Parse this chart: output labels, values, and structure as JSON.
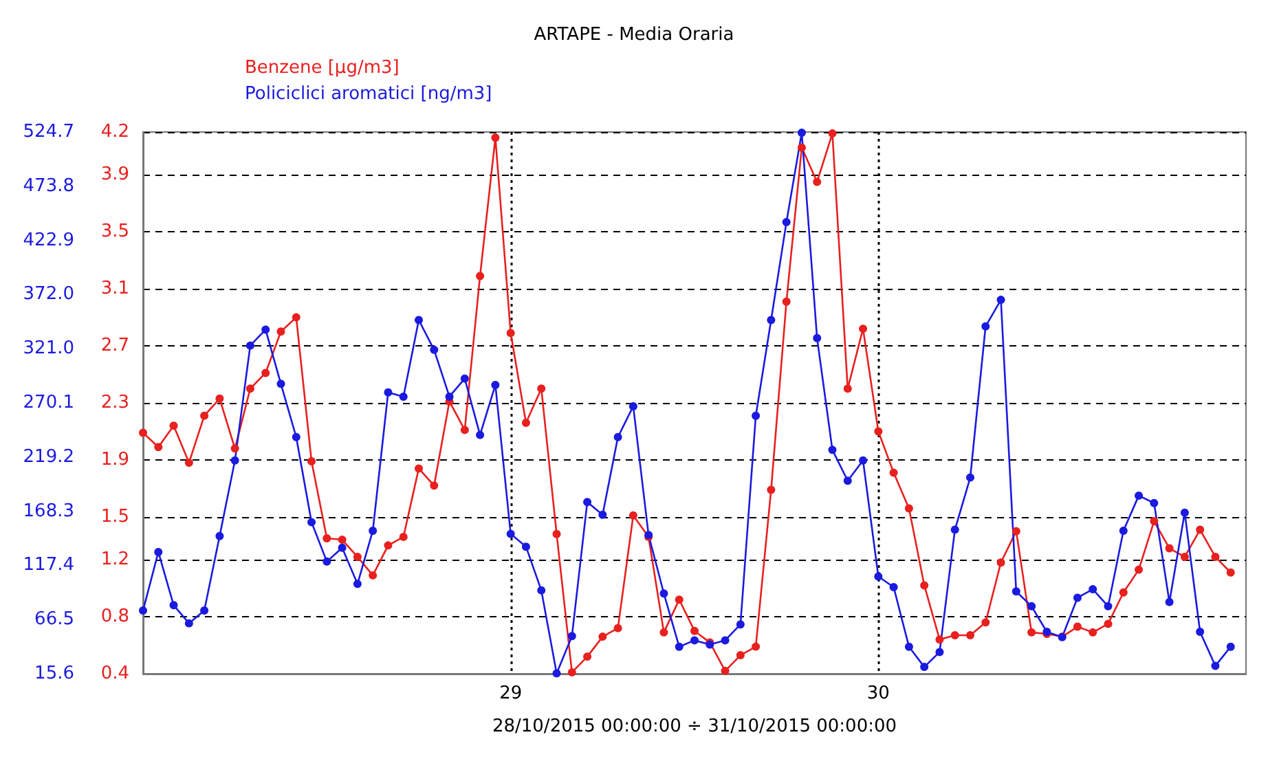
{
  "chart_data": {
    "type": "line",
    "title": "ARTAPE - Media Oraria",
    "xlabel": "28/10/2015 00:00:00 ÷ 31/10/2015 00:00:00",
    "x": [
      "2015-10-28T00:00",
      "2015-10-28T01:00",
      "2015-10-28T02:00",
      "2015-10-28T03:00",
      "2015-10-28T04:00",
      "2015-10-28T05:00",
      "2015-10-28T06:00",
      "2015-10-28T07:00",
      "2015-10-28T08:00",
      "2015-10-28T09:00",
      "2015-10-28T10:00",
      "2015-10-28T11:00",
      "2015-10-28T12:00",
      "2015-10-28T13:00",
      "2015-10-28T14:00",
      "2015-10-28T15:00",
      "2015-10-28T16:00",
      "2015-10-28T17:00",
      "2015-10-28T18:00",
      "2015-10-28T19:00",
      "2015-10-28T20:00",
      "2015-10-28T21:00",
      "2015-10-28T22:00",
      "2015-10-28T23:00",
      "2015-10-29T00:00",
      "2015-10-29T01:00",
      "2015-10-29T02:00",
      "2015-10-29T03:00",
      "2015-10-29T04:00",
      "2015-10-29T05:00",
      "2015-10-29T06:00",
      "2015-10-29T07:00",
      "2015-10-29T08:00",
      "2015-10-29T09:00",
      "2015-10-29T10:00",
      "2015-10-29T11:00",
      "2015-10-29T12:00",
      "2015-10-29T13:00",
      "2015-10-29T14:00",
      "2015-10-29T15:00",
      "2015-10-29T16:00",
      "2015-10-29T17:00",
      "2015-10-29T18:00",
      "2015-10-29T19:00",
      "2015-10-29T20:00",
      "2015-10-29T21:00",
      "2015-10-29T22:00",
      "2015-10-29T23:00",
      "2015-10-30T00:00",
      "2015-10-30T01:00",
      "2015-10-30T02:00",
      "2015-10-30T03:00",
      "2015-10-30T04:00",
      "2015-10-30T05:00",
      "2015-10-30T06:00",
      "2015-10-30T07:00",
      "2015-10-30T08:00",
      "2015-10-30T09:00",
      "2015-10-30T10:00",
      "2015-10-30T11:00",
      "2015-10-30T12:00",
      "2015-10-30T13:00",
      "2015-10-30T14:00",
      "2015-10-30T15:00",
      "2015-10-30T16:00",
      "2015-10-30T17:00",
      "2015-10-30T18:00",
      "2015-10-30T19:00",
      "2015-10-30T20:00",
      "2015-10-30T21:00",
      "2015-10-30T22:00",
      "2015-10-30T23:00"
    ],
    "series": [
      {
        "name": "Benzene [µg/m3]",
        "color": "#e8201e",
        "values": [
          2.09,
          1.99,
          2.14,
          1.88,
          2.21,
          2.33,
          1.98,
          2.4,
          2.51,
          2.8,
          2.9,
          1.89,
          1.35,
          1.34,
          1.22,
          1.09,
          1.3,
          1.36,
          1.84,
          1.72,
          2.31,
          2.11,
          3.19,
          4.16,
          2.79,
          2.16,
          2.4,
          1.38,
          0.41,
          0.52,
          0.66,
          0.72,
          1.51,
          1.36,
          0.69,
          0.92,
          0.7,
          0.62,
          0.42,
          0.53,
          0.59,
          1.69,
          3.01,
          4.09,
          3.85,
          4.19,
          2.4,
          2.82,
          2.1,
          1.81,
          1.56,
          1.02,
          0.64,
          0.67,
          0.67,
          0.76,
          1.18,
          1.4,
          0.69,
          0.68,
          0.66,
          0.73,
          0.69,
          0.75,
          0.97,
          1.13,
          1.47,
          1.28,
          1.22,
          1.41,
          1.22,
          1.11
        ]
      },
      {
        "name": "Policiclici aromatici [ng/m3]",
        "color": "#1a1ae0",
        "axis": "y2",
        "values": [
          75,
          130,
          80,
          63,
          75,
          145,
          216,
          324,
          339,
          288,
          238,
          158,
          121,
          134,
          100,
          150,
          280,
          276,
          348,
          320,
          276,
          293,
          240,
          287,
          147,
          135,
          94,
          16,
          51,
          177,
          165,
          238,
          267,
          146,
          91,
          41,
          47,
          43,
          47,
          62,
          258,
          348,
          440,
          524,
          331,
          226,
          197,
          216,
          107,
          97,
          41,
          22,
          36,
          151,
          200,
          342,
          367,
          93,
          79,
          55,
          50,
          87,
          95,
          79,
          150,
          183,
          176,
          83,
          167,
          55,
          23,
          41
        ]
      }
    ],
    "xlim": [
      "2015-10-28T00:00",
      "2015-10-31T00:00"
    ],
    "xticks": [
      {
        "value": "2015-10-29T00:00",
        "label": "29"
      },
      {
        "value": "2015-10-30T00:00",
        "label": "30"
      }
    ],
    "ylim": [
      0.4,
      4.2
    ],
    "yticks": [
      0.4,
      0.8,
      1.2,
      1.5,
      1.9,
      2.3,
      2.7,
      3.1,
      3.5,
      3.9,
      4.2
    ],
    "y2lim": [
      15.6,
      524.7
    ],
    "y2ticks": [
      15.6,
      66.5,
      117.4,
      168.3,
      219.2,
      270.1,
      {
        "value": 321.0,
        "label": "321.0"
      },
      {
        "value": 372.0,
        "label": "372.0"
      },
      422.9,
      473.8,
      524.7
    ],
    "grid": true,
    "legend": "top left",
    "marker": "circle",
    "line_style": "solid"
  }
}
